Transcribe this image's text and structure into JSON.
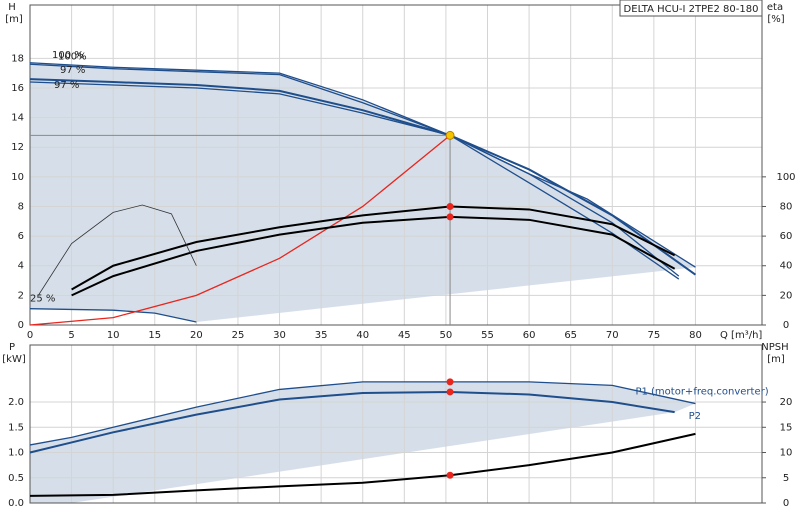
{
  "chart_data": [
    {
      "type": "line",
      "title": "DELTA HCU-I 2TPE2 80-180",
      "x_label": "Q [m³/h]",
      "y_label": "H",
      "y_unit": "[m]",
      "y2_label": "eta",
      "y2_unit": "[%]",
      "xlim": [
        0,
        88
      ],
      "xticks": [
        0,
        5,
        10,
        15,
        20,
        25,
        30,
        35,
        40,
        45,
        50,
        55,
        60,
        65,
        70,
        75,
        80
      ],
      "ylim": [
        0,
        21.6
      ],
      "yticks": [
        0,
        2,
        4,
        6,
        8,
        10,
        12,
        14,
        16,
        18
      ],
      "y2lim": [
        0,
        216
      ],
      "y2ticks": [
        0,
        20,
        40,
        60,
        80,
        100
      ],
      "grid": true,
      "operating_point": {
        "q": 50.5,
        "h": 12.8
      },
      "series": [
        {
          "name": "100 %",
          "color": "#1f4e8c",
          "x": [
            0,
            10,
            20,
            30,
            40,
            50.5,
            60,
            67,
            80
          ],
          "values": [
            17.7,
            17.4,
            17.2,
            17.0,
            15.2,
            12.8,
            10.2,
            8.5,
            3.9
          ]
        },
        {
          "name": "100%",
          "color": "#1f4e8c",
          "x": [
            0,
            10,
            20,
            30,
            40,
            50.5,
            60,
            70,
            78
          ],
          "values": [
            17.6,
            17.3,
            17.1,
            16.9,
            15.0,
            12.8,
            9.6,
            6.2,
            3.1
          ]
        },
        {
          "name": "97 %",
          "color": "#1f4e8c",
          "x": [
            0,
            10,
            20,
            30,
            40,
            50.5,
            60,
            70,
            80
          ],
          "values": [
            16.6,
            16.4,
            16.2,
            15.8,
            14.5,
            12.8,
            10.5,
            7.4,
            3.4
          ]
        },
        {
          "name": "97 %",
          "color": "#1f4e8c",
          "x": [
            0,
            10,
            20,
            30,
            40,
            50.5,
            60,
            70,
            78
          ],
          "values": [
            16.4,
            16.2,
            16.0,
            15.6,
            14.3,
            12.8,
            10.2,
            6.9,
            3.3
          ]
        },
        {
          "name": "25 %",
          "color": "#1f4e8c",
          "x": [
            0,
            10,
            15,
            20
          ],
          "values": [
            1.1,
            1.0,
            0.8,
            0.2
          ]
        },
        {
          "color": "#e8261e",
          "x": [
            0,
            10,
            20,
            30,
            40,
            50.5
          ],
          "values": [
            0,
            0.5,
            2.0,
            4.5,
            8.0,
            12.8
          ]
        },
        {
          "color": "#000000",
          "axis": "y2",
          "x": [
            5,
            10,
            20,
            30,
            40,
            50.5,
            60,
            70,
            77.5
          ],
          "values": [
            24,
            40,
            56,
            66,
            74,
            80,
            78,
            68,
            47
          ]
        },
        {
          "color": "#000000",
          "axis": "y2",
          "x": [
            5,
            10,
            20,
            30,
            40,
            50.5,
            60,
            70,
            77.5
          ],
          "values": [
            20,
            33,
            50,
            61,
            69,
            73,
            71,
            61,
            38
          ]
        },
        {
          "color": "#333333",
          "axis": "y2",
          "x": [
            1,
            5,
            10,
            13.5,
            17,
            20
          ],
          "values": [
            20,
            55,
            76,
            81,
            75,
            40
          ]
        }
      ]
    },
    {
      "type": "line",
      "y_label": "P",
      "y_unit": "[kW]",
      "y2_label": "NPSH",
      "y2_unit": "[m]",
      "xlim": [
        0,
        88
      ],
      "xticks": [
        0,
        5,
        10,
        15,
        20,
        25,
        30,
        35,
        40,
        45,
        50,
        55,
        60,
        65,
        70,
        75,
        80
      ],
      "ylim": [
        0,
        3.13
      ],
      "yticks": [
        {
          "value": 0,
          "label": "0.0"
        },
        0.5,
        {
          "value": 1,
          "label": "1.0"
        },
        1.5,
        {
          "value": 2,
          "label": "2.0"
        }
      ],
      "y2lim": [
        0,
        31.3
      ],
      "y2ticks": [
        0,
        5,
        10,
        15,
        20
      ],
      "grid": true,
      "series": [
        {
          "name": "P1 (motor+freq.converter)",
          "color": "#1f4e8c",
          "x": [
            0,
            5,
            10,
            20,
            30,
            40,
            50.5,
            60,
            70,
            80
          ],
          "values": [
            1.15,
            1.3,
            1.5,
            1.9,
            2.25,
            2.4,
            2.4,
            2.4,
            2.33,
            1.97
          ]
        },
        {
          "name": "P2",
          "color": "#1f4e8c",
          "x": [
            0,
            5,
            10,
            20,
            30,
            40,
            50.5,
            60,
            70,
            77.5
          ],
          "values": [
            1.0,
            1.2,
            1.4,
            1.75,
            2.05,
            2.18,
            2.2,
            2.15,
            2.0,
            1.8
          ]
        },
        {
          "color": "#000000",
          "axis": "y2",
          "x": [
            0,
            10,
            20,
            30,
            40,
            50.5,
            60,
            70,
            80
          ],
          "values": [
            1.4,
            1.6,
            2.5,
            3.3,
            4.0,
            5.5,
            7.5,
            10.0,
            13.7
          ]
        }
      ]
    }
  ]
}
